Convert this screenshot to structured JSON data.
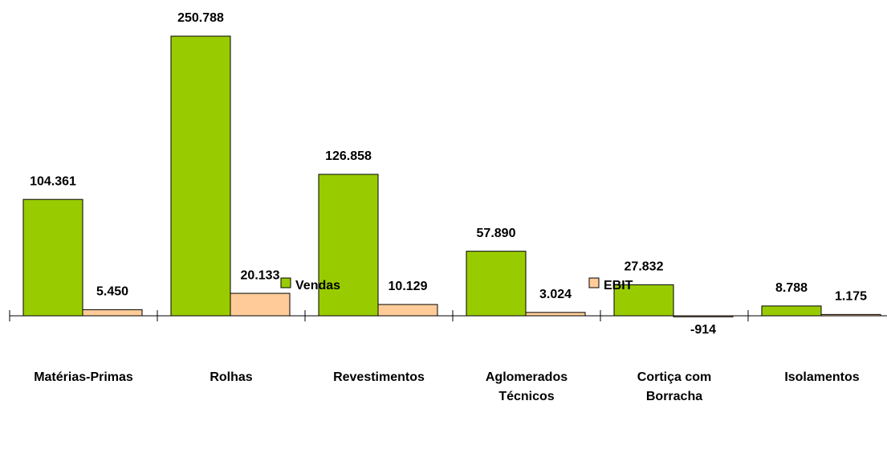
{
  "chart_data": {
    "type": "bar",
    "categories": [
      "Matérias-Primas",
      "Rolhas",
      "Revestimentos",
      "Aglomerados Técnicos",
      "Cortiça com Borracha",
      "Isolamentos"
    ],
    "series": [
      {
        "name": "Vendas",
        "color": "#99cc00",
        "values": [
          104361,
          250788,
          126858,
          57890,
          27832,
          8788
        ],
        "value_labels": [
          "104.361",
          "250.788",
          "126.858",
          "57.890",
          "27.832",
          "8.788"
        ]
      },
      {
        "name": "EBIT",
        "color": "#ffcc99",
        "values": [
          5450,
          20133,
          10129,
          3024,
          -914,
          1175
        ],
        "value_labels": [
          "5.450",
          "20.133",
          "10.129",
          "3.024",
          "-914",
          "1.175"
        ]
      }
    ],
    "legend": "bottom"
  }
}
